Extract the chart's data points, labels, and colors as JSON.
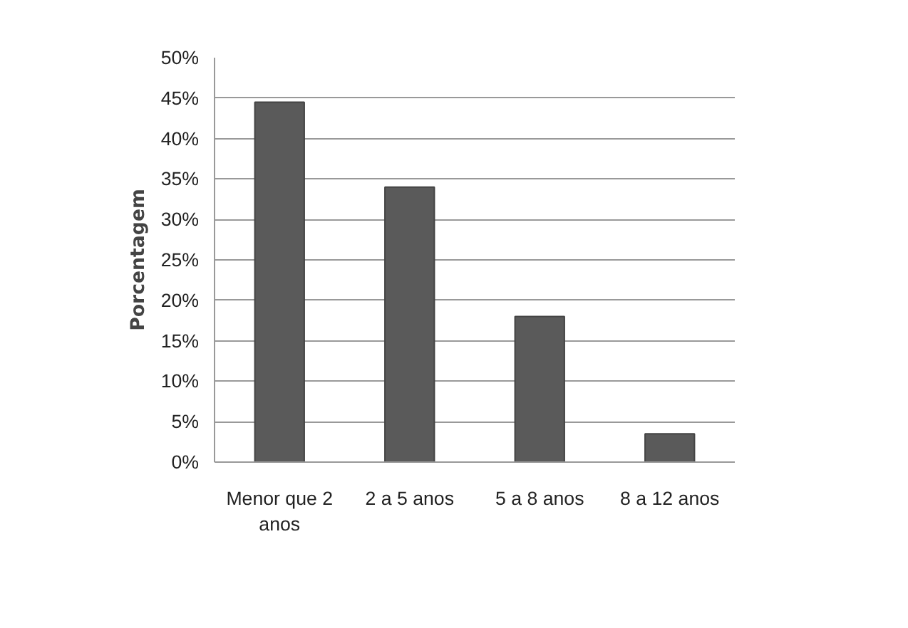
{
  "chart_data": {
    "type": "bar",
    "ylabel": "Porcentagem",
    "categories": [
      "Menor que 2 anos",
      "2 a 5 anos",
      "5 a 8 anos",
      "8 a 12 anos"
    ],
    "values": [
      44.5,
      34,
      18,
      3.5
    ],
    "color": "#5a5a5a",
    "ylim": [
      0,
      50
    ],
    "yticks": [
      {
        "value": 0,
        "label": "0%"
      },
      {
        "value": 5,
        "label": "5%"
      },
      {
        "value": 10,
        "label": "10%"
      },
      {
        "value": 15,
        "label": "15%"
      },
      {
        "value": 20,
        "label": "20%"
      },
      {
        "value": 25,
        "label": "25%"
      },
      {
        "value": 30,
        "label": "30%"
      },
      {
        "value": 35,
        "label": "35%"
      },
      {
        "value": 40,
        "label": "40%"
      },
      {
        "value": 45,
        "label": "45%"
      },
      {
        "value": 50,
        "label": "50%"
      }
    ],
    "grid": "y"
  }
}
